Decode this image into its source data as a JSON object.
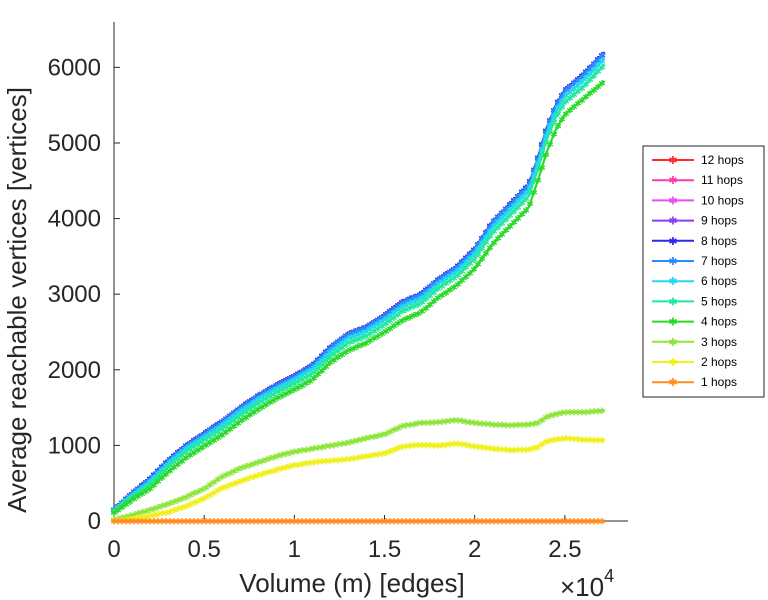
{
  "chart_data": {
    "type": "line",
    "title": "",
    "xlabel": "Volume (m) [edges]",
    "ylabel": "Average reachable vertices [vertices]",
    "x_multiplier": "×10",
    "x_multiplier_exp": "4",
    "xlim": [
      0,
      2.85
    ],
    "ylim": [
      0,
      6600
    ],
    "xticks": [
      0,
      0.5,
      1,
      1.5,
      2,
      2.5
    ],
    "xtick_labels": [
      "0",
      "0.5",
      "1",
      "1.5",
      "2",
      "2.5"
    ],
    "yticks": [
      0,
      1000,
      2000,
      3000,
      4000,
      5000,
      6000
    ],
    "ytick_labels": [
      "0",
      "1000",
      "2000",
      "3000",
      "4000",
      "5000",
      "6000"
    ],
    "legend_position": "outside-right",
    "x": [
      0,
      0.1,
      0.2,
      0.3,
      0.4,
      0.5,
      0.6,
      0.7,
      0.8,
      0.9,
      1.0,
      1.1,
      1.2,
      1.3,
      1.4,
      1.5,
      1.6,
      1.7,
      1.8,
      1.9,
      2.0,
      2.1,
      2.2,
      2.3,
      2.35,
      2.4,
      2.45,
      2.5,
      2.6,
      2.7,
      2.72
    ],
    "series": [
      {
        "name": "12 hops",
        "color": "#ff2a2a",
        "values": [
          150,
          370,
          560,
          800,
          1000,
          1160,
          1320,
          1500,
          1660,
          1800,
          1920,
          2060,
          2300,
          2480,
          2570,
          2720,
          2900,
          3000,
          3200,
          3360,
          3600,
          3960,
          4200,
          4450,
          4800,
          5200,
          5500,
          5700,
          5900,
          6150,
          6200
        ]
      },
      {
        "name": "11 hops",
        "color": "#ff3aa8",
        "values": [
          150,
          370,
          560,
          800,
          1000,
          1160,
          1320,
          1500,
          1660,
          1800,
          1920,
          2060,
          2300,
          2480,
          2570,
          2720,
          2900,
          3000,
          3200,
          3360,
          3600,
          3960,
          4200,
          4450,
          4800,
          5200,
          5500,
          5700,
          5900,
          6150,
          6200
        ]
      },
      {
        "name": "10 hops",
        "color": "#e84ef0",
        "values": [
          150,
          370,
          560,
          800,
          1000,
          1160,
          1320,
          1500,
          1660,
          1800,
          1920,
          2060,
          2300,
          2480,
          2570,
          2720,
          2900,
          3000,
          3200,
          3360,
          3600,
          3960,
          4200,
          4450,
          4800,
          5200,
          5500,
          5700,
          5900,
          6150,
          6200
        ]
      },
      {
        "name": "9 hops",
        "color": "#8a3cf0",
        "values": [
          150,
          370,
          560,
          800,
          1000,
          1160,
          1320,
          1500,
          1660,
          1800,
          1920,
          2060,
          2300,
          2480,
          2570,
          2720,
          2900,
          3000,
          3200,
          3360,
          3600,
          3960,
          4200,
          4450,
          4800,
          5200,
          5500,
          5700,
          5900,
          6150,
          6200
        ]
      },
      {
        "name": "8 hops",
        "color": "#2a2ae8",
        "values": [
          150,
          370,
          560,
          800,
          1000,
          1160,
          1320,
          1500,
          1660,
          1800,
          1920,
          2060,
          2300,
          2480,
          2570,
          2720,
          2900,
          3000,
          3200,
          3360,
          3600,
          3960,
          4200,
          4450,
          4800,
          5200,
          5500,
          5700,
          5900,
          6150,
          6200
        ]
      },
      {
        "name": "7 hops",
        "color": "#2a8cff",
        "values": [
          145,
          360,
          550,
          790,
          990,
          1150,
          1310,
          1490,
          1650,
          1790,
          1910,
          2050,
          2290,
          2470,
          2560,
          2710,
          2890,
          2990,
          3190,
          3350,
          3590,
          3950,
          4190,
          4440,
          4790,
          5190,
          5490,
          5690,
          5890,
          6140,
          6190
        ]
      },
      {
        "name": "6 hops",
        "color": "#23d8f0",
        "values": [
          140,
          340,
          520,
          760,
          960,
          1110,
          1270,
          1450,
          1610,
          1750,
          1870,
          2010,
          2240,
          2420,
          2510,
          2660,
          2840,
          2940,
          3140,
          3300,
          3540,
          3890,
          4130,
          4380,
          4730,
          5130,
          5420,
          5620,
          5820,
          6070,
          6120
        ]
      },
      {
        "name": "5 hops",
        "color": "#22e8a0",
        "values": [
          130,
          320,
          490,
          720,
          920,
          1070,
          1220,
          1400,
          1560,
          1700,
          1820,
          1950,
          2180,
          2360,
          2450,
          2600,
          2780,
          2880,
          3080,
          3240,
          3470,
          3820,
          4060,
          4300,
          4650,
          5050,
          5340,
          5540,
          5740,
          5990,
          6040
        ]
      },
      {
        "name": "4 hops",
        "color": "#2ad82a",
        "values": [
          110,
          280,
          430,
          650,
          840,
          990,
          1140,
          1320,
          1480,
          1620,
          1740,
          1870,
          2100,
          2260,
          2360,
          2500,
          2660,
          2760,
          2960,
          3120,
          3340,
          3670,
          3910,
          4150,
          4500,
          4880,
          5180,
          5380,
          5580,
          5780,
          5820
        ]
      },
      {
        "name": "3 hops",
        "color": "#8ce63a",
        "values": [
          20,
          80,
          150,
          230,
          320,
          430,
          590,
          700,
          780,
          860,
          920,
          960,
          1000,
          1040,
          1100,
          1150,
          1260,
          1300,
          1310,
          1340,
          1300,
          1280,
          1270,
          1280,
          1300,
          1380,
          1420,
          1440,
          1440,
          1460,
          1470
        ]
      },
      {
        "name": "2 hops",
        "color": "#f0f01e",
        "values": [
          5,
          30,
          70,
          120,
          200,
          300,
          440,
          530,
          610,
          680,
          740,
          780,
          800,
          820,
          860,
          900,
          990,
          1010,
          1000,
          1030,
          990,
          960,
          940,
          950,
          980,
          1060,
          1080,
          1100,
          1080,
          1070,
          1070
        ]
      },
      {
        "name": "1 hops",
        "color": "#ff8c1e",
        "values": [
          2,
          2,
          2,
          2,
          3,
          3,
          3,
          3,
          3,
          3,
          3,
          3,
          3,
          3,
          3,
          3,
          3,
          3,
          3,
          3,
          3,
          3,
          3,
          3,
          3,
          3,
          3,
          3,
          3,
          3,
          3
        ]
      }
    ]
  }
}
